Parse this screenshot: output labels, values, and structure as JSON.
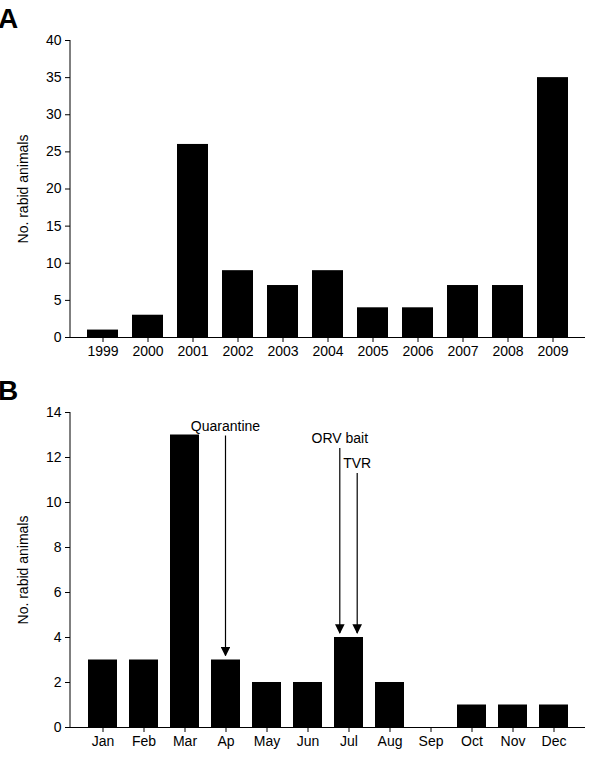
{
  "chart_data": [
    {
      "type": "bar",
      "title": "A",
      "categories": [
        "1999",
        "2000",
        "2001",
        "2002",
        "2003",
        "2004",
        "2005",
        "2006",
        "2007",
        "2008",
        "2009"
      ],
      "values": [
        1,
        3,
        26,
        9,
        7,
        9,
        4,
        4,
        7,
        7,
        35
      ],
      "color": "#000000",
      "y_label": "No. rabid animals",
      "ylim": [
        0,
        40
      ],
      "yticks": [
        0,
        5,
        10,
        15,
        20,
        25,
        30,
        35,
        40
      ]
    },
    {
      "type": "bar",
      "title": "B",
      "categories": [
        "Jan",
        "Feb",
        "Mar",
        "Ap",
        "May",
        "Jun",
        "Jul",
        "Aug",
        "Sep",
        "Oct",
        "Nov",
        "Dec"
      ],
      "values": [
        3,
        3,
        13,
        3,
        2,
        2,
        4,
        2,
        0,
        1,
        1,
        1
      ],
      "color": "#000000",
      "y_label": "No. rabid animals",
      "ylim": [
        0,
        14
      ],
      "yticks": [
        0,
        2,
        4,
        6,
        8,
        10,
        12,
        14
      ],
      "annotations": [
        {
          "text": "Quarantine",
          "category": "Ap"
        },
        {
          "text": "ORV bait",
          "category": "Jul"
        },
        {
          "text": "TVR",
          "category": "Jul"
        }
      ]
    }
  ]
}
